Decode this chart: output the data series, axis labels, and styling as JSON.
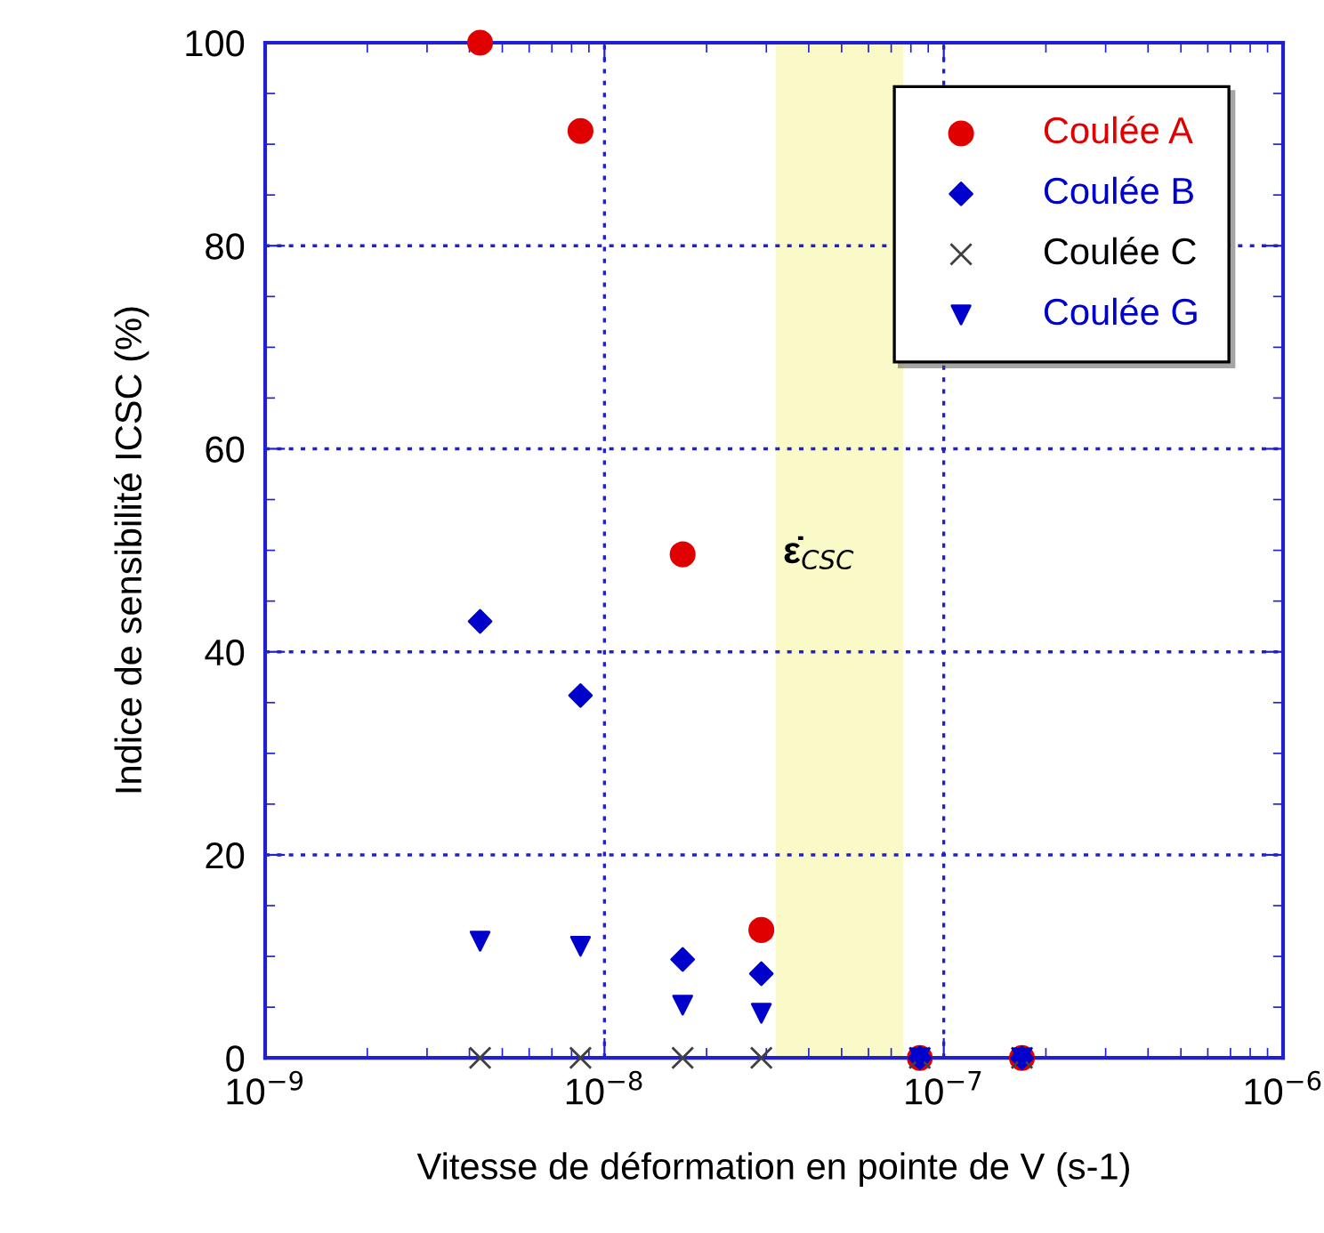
{
  "chart_data": {
    "type": "scatter",
    "xlabel": "Vitesse de déformation en pointe de V (s-1)",
    "ylabel": "Indice de sensibilité ICSC (%)",
    "log": "x",
    "x": [
      4.3e-09,
      8.5e-09,
      1.7e-08,
      2.9e-08,
      8.5e-08,
      1.7e-07
    ],
    "series": [
      {
        "name": "Coulée A",
        "color": "#e00000",
        "marker": "circle",
        "values": [
          100,
          91.3,
          49.6,
          12.6,
          0,
          0
        ]
      },
      {
        "name": "Coulée B",
        "color": "#0000cc",
        "marker": "diamond",
        "values": [
          43.0,
          35.7,
          9.7,
          8.3,
          0,
          0
        ]
      },
      {
        "name": "Coulée C",
        "color": "#404040",
        "marker": "cross",
        "values": [
          0,
          0,
          0,
          0,
          0,
          0
        ]
      },
      {
        "name": "Coulée G",
        "color": "#0000cc",
        "marker": "triangle",
        "values": [
          11.5,
          11.0,
          5.2,
          4.4,
          0,
          0
        ]
      }
    ],
    "xlim": [
      1e-09,
      1e-06
    ],
    "xticks": [
      {
        "value": 1e-09,
        "label": "10$^{−9}$"
      },
      {
        "value": 1e-08,
        "label": "10$^{−8}$"
      },
      {
        "value": 1e-07,
        "label": "10$^{−7}$"
      },
      {
        "value": 1e-06,
        "label": "10$^{−6}$"
      }
    ],
    "ylim": [
      0,
      100
    ],
    "yticks": [
      0,
      20,
      40,
      60,
      80,
      100
    ],
    "bands": [
      {
        "axis": "x",
        "from": 3.2e-08,
        "to": 7.6e-08,
        "label": "ε̇$_{CSC}$",
        "color": "#fafac8"
      }
    ],
    "grid": true,
    "legend": "top right"
  }
}
